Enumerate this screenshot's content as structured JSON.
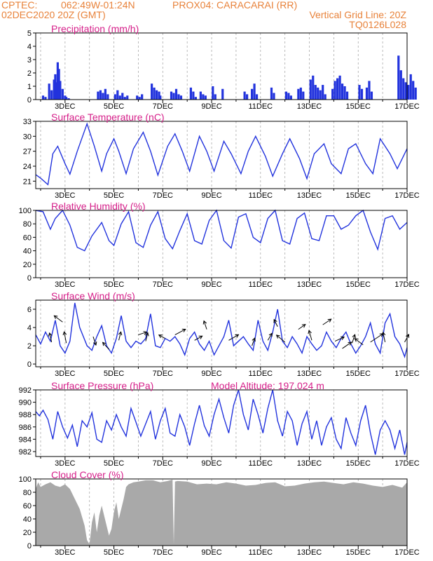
{
  "header": {
    "line1_left": "CPTEC:",
    "line1_coords": "062:49W-01:24N",
    "line1_station": "PROX04: CARACARAI (RR)",
    "line2_left": "02DEC2020 20Z (GMT)",
    "line2_right": "Vertical Grid Line: 20Z",
    "line3_right": "TQ0126L028"
  },
  "colors": {
    "header": "#e8823a",
    "title": "#d6208a",
    "series": "#2233dd",
    "cloud": "#a9a9a9",
    "grid": "#aaaaaa"
  },
  "x_tick_labels": [
    "3DEC",
    "5DEC",
    "7DEC",
    "9DEC",
    "11DEC",
    "13DEC",
    "15DEC",
    "17DEC"
  ],
  "chart_data": [
    {
      "type": "bar",
      "title": "Precipitation (mm/h)",
      "ylim": [
        0,
        5
      ],
      "yticks": [
        0,
        1,
        2,
        3,
        4,
        5
      ],
      "x_days": [
        2.1,
        2.2,
        2.35,
        2.45,
        2.55,
        2.6,
        2.65,
        2.7,
        2.75,
        2.8,
        2.9,
        3.0,
        3.05,
        3.15,
        4.35,
        4.45,
        4.55,
        4.65,
        4.75,
        5.05,
        5.15,
        5.25,
        5.35,
        5.45,
        5.55,
        5.95,
        6.05,
        6.15,
        6.55,
        6.65,
        6.75,
        6.85,
        6.9,
        7.35,
        7.45,
        7.55,
        7.65,
        7.75,
        8.15,
        8.25,
        8.35,
        8.55,
        8.65,
        8.75,
        9.05,
        9.15,
        9.45,
        10.35,
        10.45,
        10.65,
        10.75,
        10.85,
        11.45,
        11.55,
        12.05,
        12.15,
        12.25,
        12.55,
        12.65,
        12.75,
        13.05,
        13.15,
        13.25,
        13.35,
        13.45,
        13.55,
        13.65,
        13.95,
        14.05,
        14.15,
        14.25,
        14.35,
        14.45,
        14.55,
        15.05,
        15.15,
        15.35,
        15.45,
        15.55,
        16.65,
        16.75,
        16.85,
        16.95,
        17.05,
        17.15,
        17.25,
        17.35
      ],
      "values": [
        0.3,
        0.2,
        1.2,
        0.7,
        1.5,
        1.9,
        1.3,
        2.8,
        2.3,
        1.4,
        0.8,
        0.3,
        0.2,
        0.1,
        0.6,
        0.7,
        0.5,
        0.8,
        0.4,
        0.4,
        0.7,
        0.3,
        0.5,
        0.2,
        0.3,
        0.3,
        0.2,
        0.4,
        1.2,
        0.9,
        0.7,
        0.6,
        0.3,
        0.6,
        0.5,
        0.8,
        0.4,
        0.3,
        0.9,
        0.6,
        0.2,
        0.6,
        0.4,
        0.3,
        1.0,
        0.4,
        0.8,
        0.6,
        0.4,
        0.8,
        1.2,
        0.4,
        0.9,
        0.5,
        0.6,
        0.5,
        0.3,
        0.8,
        0.9,
        0.6,
        1.5,
        1.8,
        1.1,
        0.9,
        0.7,
        1.1,
        0.4,
        0.8,
        1.4,
        1.6,
        1.8,
        1.2,
        1.0,
        0.6,
        1.1,
        0.8,
        0.9,
        1.4,
        0.6,
        3.3,
        2.2,
        1.6,
        1.3,
        1.1,
        1.9,
        1.4,
        0.9
      ]
    },
    {
      "type": "line",
      "title": "Surface Temperature (nC)",
      "ylim": [
        19.5,
        33
      ],
      "yticks": [
        21,
        24,
        27,
        30,
        33
      ],
      "x": [
        1.8,
        2.0,
        2.3,
        2.5,
        2.7,
        3.0,
        3.2,
        3.5,
        3.9,
        4.2,
        4.5,
        4.7,
        5.0,
        5.2,
        5.5,
        5.8,
        6.2,
        6.5,
        6.8,
        7.2,
        7.5,
        7.8,
        8.1,
        8.5,
        8.8,
        9.1,
        9.5,
        9.8,
        10.2,
        10.5,
        10.8,
        11.2,
        11.5,
        11.9,
        12.2,
        12.6,
        12.9,
        13.2,
        13.6,
        13.9,
        14.3,
        14.6,
        14.9,
        15.3,
        15.6,
        15.9,
        16.3,
        16.6,
        17.0
      ],
      "y": [
        22.3,
        21.6,
        20.3,
        26.5,
        28.0,
        24.5,
        22.4,
        27.0,
        32.5,
        28.0,
        23.0,
        26.5,
        29.5,
        27.0,
        22.5,
        27.5,
        30.8,
        27.0,
        22.2,
        28.0,
        30.5,
        27.0,
        23.0,
        30.0,
        27.0,
        23.0,
        29.0,
        26.5,
        22.5,
        27.0,
        30.0,
        26.0,
        22.0,
        26.5,
        29.5,
        25.5,
        21.5,
        26.5,
        28.5,
        24.5,
        22.5,
        27.5,
        28.5,
        24.5,
        22.5,
        29.5,
        26.5,
        23.5,
        27.5
      ]
    },
    {
      "type": "line",
      "title": "Relative Humidity (%)",
      "ylim": [
        0,
        100
      ],
      "yticks": [
        0,
        20,
        40,
        60,
        80,
        100
      ],
      "x": [
        1.8,
        2.1,
        2.4,
        2.6,
        2.9,
        3.2,
        3.5,
        3.8,
        4.1,
        4.5,
        4.8,
        5.0,
        5.3,
        5.6,
        5.9,
        6.2,
        6.5,
        6.8,
        7.1,
        7.4,
        7.7,
        8.0,
        8.3,
        8.6,
        8.9,
        9.2,
        9.5,
        9.8,
        10.1,
        10.4,
        10.7,
        11.0,
        11.3,
        11.6,
        11.9,
        12.2,
        12.5,
        12.8,
        13.1,
        13.4,
        13.7,
        14.0,
        14.3,
        14.6,
        14.9,
        15.2,
        15.5,
        15.8,
        16.1,
        16.4,
        16.7,
        17.0
      ],
      "y": [
        100,
        98,
        72,
        88,
        100,
        78,
        45,
        40,
        62,
        82,
        55,
        48,
        80,
        98,
        52,
        45,
        78,
        98,
        58,
        43,
        70,
        95,
        55,
        50,
        85,
        100,
        55,
        44,
        90,
        95,
        60,
        52,
        88,
        100,
        55,
        50,
        88,
        96,
        58,
        55,
        92,
        92,
        72,
        78,
        92,
        100,
        68,
        42,
        88,
        92,
        72,
        82
      ]
    },
    {
      "type": "line",
      "title": "Surface Wind (m/s)",
      "ylim": [
        -0.3,
        7
      ],
      "yticks": [
        0,
        2,
        4,
        6
      ],
      "x": [
        1.8,
        2.0,
        2.2,
        2.4,
        2.6,
        2.8,
        3.0,
        3.2,
        3.4,
        3.6,
        3.9,
        4.1,
        4.3,
        4.5,
        4.7,
        4.9,
        5.1,
        5.3,
        5.5,
        5.7,
        5.9,
        6.1,
        6.3,
        6.5,
        6.7,
        6.9,
        7.1,
        7.3,
        7.5,
        7.7,
        7.9,
        8.1,
        8.3,
        8.5,
        8.7,
        8.9,
        9.1,
        9.3,
        9.5,
        9.7,
        9.9,
        10.1,
        10.3,
        10.5,
        10.7,
        10.9,
        11.1,
        11.3,
        11.5,
        11.7,
        11.9,
        12.1,
        12.3,
        12.5,
        12.7,
        12.9,
        13.1,
        13.3,
        13.5,
        13.7,
        13.9,
        14.1,
        14.3,
        14.5,
        14.7,
        14.9,
        15.1,
        15.3,
        15.5,
        15.7,
        15.9,
        16.1,
        16.3,
        16.5,
        16.7,
        16.9,
        17.0
      ],
      "y": [
        3.2,
        2.2,
        3.5,
        2.5,
        4.8,
        2.0,
        1.2,
        2.5,
        6.7,
        4.0,
        2.0,
        1.5,
        3.0,
        4.2,
        2.0,
        1.2,
        2.8,
        5.3,
        2.5,
        1.8,
        2.5,
        2.2,
        2.8,
        5.5,
        2.0,
        1.8,
        2.8,
        2.5,
        3.0,
        2.2,
        1.0,
        2.8,
        3.5,
        2.2,
        1.5,
        2.5,
        1.0,
        2.0,
        3.0,
        4.8,
        2.0,
        2.5,
        3.0,
        2.2,
        1.5,
        4.8,
        2.5,
        1.5,
        3.5,
        6.0,
        2.5,
        1.8,
        3.0,
        2.2,
        1.2,
        3.0,
        2.2,
        1.5,
        2.0,
        3.5,
        2.5,
        1.8,
        2.8,
        3.5,
        2.2,
        1.2,
        2.0,
        3.0,
        4.5,
        2.2,
        1.2,
        4.5,
        5.5,
        3.0,
        2.2,
        0.8,
        1.8
      ],
      "arrows": [
        {
          "x": 2.45,
          "y": 2.4,
          "dx": -3,
          "dy": -13
        },
        {
          "x": 2.9,
          "y": 4.6,
          "dx": -12,
          "dy": -9
        },
        {
          "x": 3.05,
          "y": 2.3,
          "dx": -3,
          "dy": -16
        },
        {
          "x": 4.15,
          "y": 3.0,
          "dx": 4,
          "dy": 12
        },
        {
          "x": 4.8,
          "y": 1.6,
          "dx": -9,
          "dy": -10
        },
        {
          "x": 5.2,
          "y": 2.6,
          "dx": 3,
          "dy": -12
        },
        {
          "x": 6.0,
          "y": 3.2,
          "dx": 12,
          "dy": -4
        },
        {
          "x": 6.3,
          "y": 2.5,
          "dx": 3,
          "dy": -12
        },
        {
          "x": 7.1,
          "y": 2.8,
          "dx": -9,
          "dy": -5
        },
        {
          "x": 7.5,
          "y": 3.2,
          "dx": 15,
          "dy": -8
        },
        {
          "x": 8.3,
          "y": 2.6,
          "dx": 11,
          "dy": -6
        },
        {
          "x": 8.8,
          "y": 3.8,
          "dx": -4,
          "dy": -12
        },
        {
          "x": 9.7,
          "y": 2.6,
          "dx": 14,
          "dy": -8
        },
        {
          "x": 10.65,
          "y": 2.0,
          "dx": 4,
          "dy": -11
        },
        {
          "x": 11.3,
          "y": 2.6,
          "dx": 6,
          "dy": -10
        },
        {
          "x": 11.7,
          "y": 4.1,
          "dx": -5,
          "dy": -10
        },
        {
          "x": 12.0,
          "y": 2.4,
          "dx": -12,
          "dy": -10
        },
        {
          "x": 12.55,
          "y": 3.8,
          "dx": 10,
          "dy": -7
        },
        {
          "x": 13.1,
          "y": 2.6,
          "dx": -4,
          "dy": -14
        },
        {
          "x": 13.55,
          "y": 4.3,
          "dx": 12,
          "dy": -8
        },
        {
          "x": 14.05,
          "y": 2.5,
          "dx": 13,
          "dy": -6
        },
        {
          "x": 14.35,
          "y": 1.7,
          "dx": 13,
          "dy": -9
        },
        {
          "x": 14.75,
          "y": 2.3,
          "dx": 4,
          "dy": -12
        },
        {
          "x": 15.2,
          "y": 2.1,
          "dx": -12,
          "dy": -9
        },
        {
          "x": 15.5,
          "y": 2.4,
          "dx": 18,
          "dy": -12
        },
        {
          "x": 16.1,
          "y": 2.4,
          "dx": -3,
          "dy": -14
        },
        {
          "x": 16.9,
          "y": 2.4,
          "dx": 6,
          "dy": -11
        }
      ]
    },
    {
      "type": "line",
      "title": "Surface Pressure (hPa)",
      "annotation": "Model Altitude: 197.024 m",
      "ylim": [
        981.2,
        992
      ],
      "yticks": [
        982,
        984,
        986,
        988,
        990,
        992
      ],
      "x": [
        1.8,
        1.95,
        2.1,
        2.3,
        2.5,
        2.7,
        2.9,
        3.1,
        3.3,
        3.5,
        3.7,
        3.9,
        4.1,
        4.3,
        4.5,
        4.7,
        4.9,
        5.1,
        5.3,
        5.5,
        5.7,
        5.9,
        6.1,
        6.3,
        6.5,
        6.7,
        6.9,
        7.1,
        7.3,
        7.5,
        7.7,
        7.9,
        8.1,
        8.3,
        8.5,
        8.7,
        8.9,
        9.1,
        9.3,
        9.5,
        9.7,
        9.9,
        10.1,
        10.3,
        10.5,
        10.7,
        10.9,
        11.1,
        11.3,
        11.5,
        11.7,
        11.9,
        12.1,
        12.3,
        12.5,
        12.7,
        12.9,
        13.1,
        13.3,
        13.5,
        13.7,
        13.9,
        14.1,
        14.3,
        14.5,
        14.7,
        14.9,
        15.1,
        15.3,
        15.5,
        15.7,
        15.9,
        16.1,
        16.3,
        16.5,
        16.7,
        16.9,
        17.0
      ],
      "y": [
        988.5,
        987.8,
        988.7,
        987.2,
        984.0,
        988.5,
        986.0,
        984.2,
        986.3,
        982.8,
        987.0,
        986.0,
        988.3,
        984.0,
        983.5,
        987.0,
        985.5,
        988.0,
        986.0,
        984.5,
        989.0,
        986.8,
        984.5,
        986.5,
        988.5,
        984.0,
        987.0,
        989.0,
        985.0,
        984.5,
        988.0,
        986.0,
        983.0,
        986.5,
        989.5,
        986.2,
        984.5,
        988.0,
        990.5,
        987.5,
        985.0,
        989.5,
        992.0,
        988.0,
        985.5,
        990.5,
        988.0,
        985.0,
        989.0,
        992.0,
        987.0,
        984.5,
        988.5,
        987.0,
        983.0,
        986.5,
        988.5,
        984.0,
        987.0,
        983.0,
        986.0,
        987.5,
        984.0,
        982.5,
        987.5,
        985.0,
        983.0,
        987.0,
        989.5,
        985.0,
        981.5,
        985.5,
        987.0,
        985.5,
        982.5,
        985.5,
        981.5,
        983.5
      ]
    },
    {
      "type": "area",
      "title": "Cloud Cover (%)",
      "ylim": [
        0,
        100
      ],
      "yticks": [
        0,
        20,
        40,
        60,
        80,
        100
      ],
      "x": [
        1.8,
        1.9,
        2.0,
        2.2,
        2.4,
        2.6,
        2.8,
        3.0,
        3.2,
        3.4,
        3.6,
        3.8,
        3.9,
        4.0,
        4.1,
        4.2,
        4.3,
        4.4,
        4.5,
        4.7,
        4.8,
        4.9,
        5.0,
        5.1,
        5.2,
        5.3,
        5.4,
        5.5,
        5.6,
        5.8,
        6.0,
        6.3,
        6.6,
        6.9,
        7.2,
        7.4,
        7.45,
        7.5,
        7.6,
        8.0,
        8.4,
        8.8,
        9.2,
        9.6,
        10.0,
        10.4,
        10.8,
        11.2,
        11.6,
        12.0,
        12.4,
        12.8,
        13.2,
        13.6,
        14.0,
        14.4,
        14.8,
        15.2,
        15.6,
        16.0,
        16.4,
        16.8,
        17.0
      ],
      "y": [
        85,
        95,
        88,
        92,
        95,
        90,
        88,
        92,
        85,
        70,
        55,
        30,
        8,
        2,
        35,
        50,
        20,
        45,
        60,
        30,
        15,
        25,
        50,
        65,
        40,
        55,
        70,
        88,
        92,
        95,
        96,
        98,
        98,
        95,
        97,
        99,
        2,
        96,
        97,
        96,
        92,
        93,
        92,
        95,
        93,
        90,
        91,
        94,
        95,
        89,
        90,
        93,
        95,
        96,
        94,
        92,
        95,
        93,
        90,
        88,
        91,
        87,
        95
      ]
    }
  ]
}
